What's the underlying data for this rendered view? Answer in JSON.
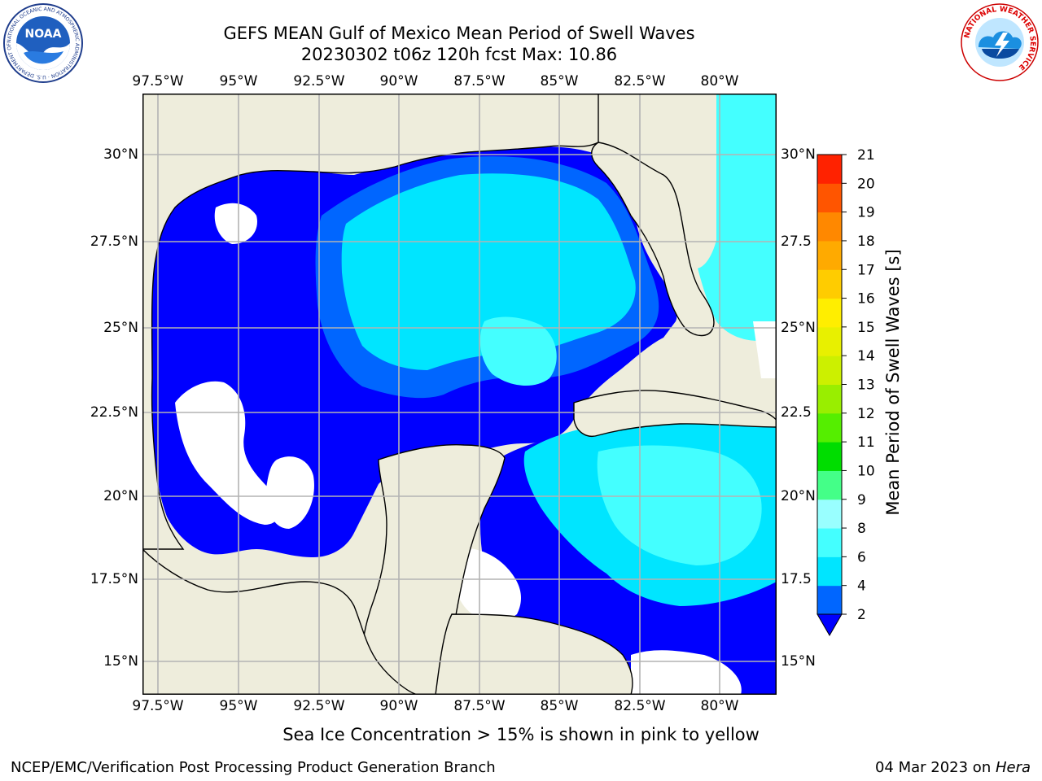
{
  "title": {
    "line1": "GEFS MEAN Gulf of Mexico Mean Period of Swell Waves",
    "line2": "20230302 t06z 120h fcst   Max: 10.86"
  },
  "map": {
    "lon_labels": [
      "97.5°W",
      "95°W",
      "92.5°W",
      "90°W",
      "87.5°W",
      "85°W",
      "82.5°W",
      "80°W"
    ],
    "lat_labels_left": [
      "30°N",
      "27.5°N",
      "25°N",
      "22.5°N",
      "20°N",
      "17.5°N",
      "15°N"
    ],
    "lat_labels_right": [
      "30°N",
      "27.5",
      "25°N",
      "22.5",
      "20°N",
      "17.5",
      "15°N"
    ],
    "colors": {
      "land": "#eeeddc",
      "no_data": "#ffffff",
      "grid": "#b3b3b3"
    }
  },
  "colorbar": {
    "label": "Mean Period of Swell Waves [s]",
    "ticks": [
      "2",
      "4",
      "6",
      "8",
      "9",
      "10",
      "11",
      "12",
      "13",
      "14",
      "15",
      "16",
      "17",
      "18",
      "19",
      "20",
      "21"
    ],
    "colors": [
      "#0000ff",
      "#0066ff",
      "#00e5ff",
      "#44ffff",
      "#99ffff",
      "#44ff88",
      "#00dd00",
      "#55ee00",
      "#99ee00",
      "#ccf000",
      "#e8f000",
      "#ffee00",
      "#ffcc00",
      "#ffaa00",
      "#ff8800",
      "#ff5500",
      "#ff2200",
      "#ff0000"
    ]
  },
  "logos": {
    "noaa_text": "NOAA",
    "noaa_ring": "NATIONAL OCEANIC AND ATMOSPHERIC ADMINISTRATION · U.S. DEPARTMENT OF COMMERCE",
    "nws_ring": "NATIONAL WEATHER SERVICE"
  },
  "footer": {
    "ice_note": "Sea Ice Concentration > 15% is shown in pink to yellow",
    "org": "NCEP/EMC/Verification Post Processing Product Generation Branch",
    "date": "04 Mar 2023 on ",
    "host": "Hera"
  }
}
